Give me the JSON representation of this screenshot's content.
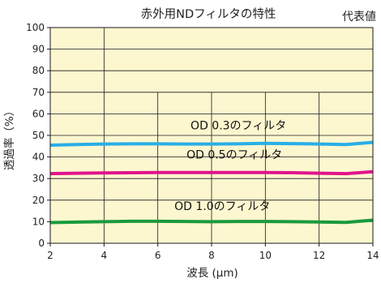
{
  "chart_data": {
    "type": "line",
    "title": "赤外用NDフィルタの特性",
    "subtitle": "代表値",
    "xlabel": "波長 (μm)",
    "ylabel": "透過率（%）",
    "xlim": [
      2,
      14
    ],
    "ylim": [
      0,
      100
    ],
    "x_ticks": [
      2,
      4,
      6,
      8,
      10,
      12,
      14
    ],
    "y_ticks": [
      0,
      10,
      20,
      30,
      40,
      50,
      60,
      70,
      80,
      90,
      100
    ],
    "grid": true,
    "background": "#fdf7d0",
    "series": [
      {
        "name": "OD 0.3のフィルタ",
        "color": "#29aee6",
        "x": [
          2,
          3,
          4,
          5,
          6,
          7,
          8,
          9,
          10,
          11,
          12,
          13,
          14
        ],
        "y": [
          45.5,
          45.8,
          46.0,
          46.1,
          46.1,
          46.0,
          46.0,
          46.1,
          46.3,
          46.2,
          46.0,
          45.8,
          46.8
        ]
      },
      {
        "name": "OD 0.5のフィルタ",
        "color": "#e0148c",
        "x": [
          2,
          3,
          4,
          5,
          6,
          7,
          8,
          9,
          10,
          11,
          12,
          13,
          14
        ],
        "y": [
          32.3,
          32.5,
          32.6,
          32.7,
          32.8,
          32.8,
          32.8,
          32.8,
          32.8,
          32.7,
          32.5,
          32.3,
          33.2
        ]
      },
      {
        "name": "OD 1.0のフィルタ",
        "color": "#1a9a3c",
        "x": [
          2,
          3,
          4,
          5,
          6,
          7,
          8,
          9,
          10,
          11,
          12,
          13,
          14
        ],
        "y": [
          9.6,
          9.8,
          10.0,
          10.2,
          10.2,
          10.1,
          10.0,
          10.1,
          10.1,
          10.0,
          9.9,
          9.7,
          10.7
        ]
      }
    ]
  }
}
